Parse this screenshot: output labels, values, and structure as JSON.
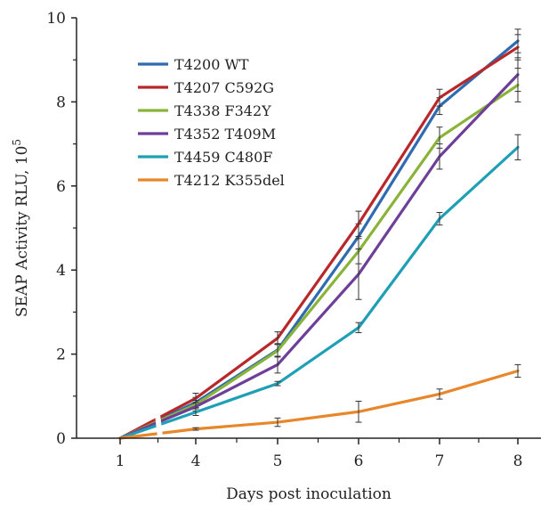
{
  "chart_data": {
    "type": "line",
    "title": "",
    "xlabel": "Days post inoculation",
    "ylabel": "SEAP Activity RLU, 10",
    "ylabel_superscript": "5",
    "categories": [
      "1",
      "4",
      "5",
      "6",
      "7",
      "8"
    ],
    "ylim": [
      0,
      10
    ],
    "yticks": [
      0,
      2,
      4,
      6,
      8,
      10
    ],
    "axis_break": "between 1 and 4",
    "grid": false,
    "legend_position": "top-left",
    "series": [
      {
        "name": "T4200 WT",
        "color": "#2e6bb0",
        "values": [
          0,
          0.85,
          2.1,
          4.8,
          7.9,
          9.45
        ],
        "errors": [
          0,
          0.12,
          0.15,
          0.3,
          0.2,
          0.28
        ]
      },
      {
        "name": "T4207 C592G",
        "color": "#b8282a",
        "values": [
          0,
          0.95,
          2.38,
          5.1,
          8.1,
          9.3
        ],
        "errors": [
          0,
          0.12,
          0.15,
          0.3,
          0.2,
          0.3
        ]
      },
      {
        "name": "T4338 F342Y",
        "color": "#8ab33a",
        "values": [
          0,
          0.8,
          2.08,
          4.45,
          7.15,
          8.4
        ],
        "errors": [
          0,
          0.1,
          0.15,
          0.3,
          0.25,
          0.4
        ]
      },
      {
        "name": "T4352 T409M",
        "color": "#6e3f98",
        "values": [
          0,
          0.75,
          1.75,
          3.9,
          6.7,
          8.65
        ],
        "errors": [
          0,
          0.1,
          0.2,
          0.6,
          0.3,
          0.4
        ]
      },
      {
        "name": "T4459 C480F",
        "color": "#1f9fb5",
        "values": [
          0,
          0.62,
          1.3,
          2.63,
          5.22,
          6.92
        ],
        "errors": [
          0,
          0.08,
          0.05,
          0.12,
          0.15,
          0.3
        ]
      },
      {
        "name": "T4212 K355del",
        "color": "#e8862a",
        "values": [
          0,
          0.22,
          0.38,
          0.63,
          1.05,
          1.6
        ],
        "errors": [
          0,
          0.03,
          0.1,
          0.25,
          0.12,
          0.15
        ]
      }
    ]
  }
}
